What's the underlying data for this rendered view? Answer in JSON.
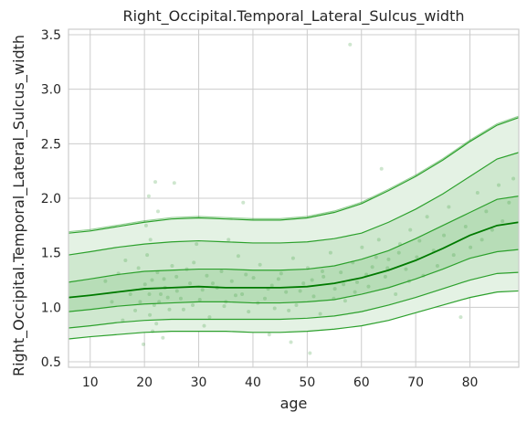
{
  "chart_data": {
    "type": "line",
    "title": "Right_Occipital.Temporal_Lateral_Sulcus_width",
    "xlabel": "age",
    "ylabel": "Right_Occipital.Temporal_Lateral_Sulcus_width",
    "xlim": [
      6,
      89
    ],
    "ylim": [
      0.45,
      3.55
    ],
    "xticks": [
      10,
      20,
      30,
      40,
      50,
      60,
      70,
      80
    ],
    "yticks": [
      0.5,
      1.0,
      1.5,
      2.0,
      2.5,
      3.0,
      3.5
    ],
    "ytick_labels": [
      "0.5",
      "1.0",
      "1.5",
      "2.0",
      "2.5",
      "3.0",
      "3.5"
    ],
    "grid": true,
    "colors": {
      "median": "#007a00",
      "centile": "#2ca02c",
      "band_outer": "#e4f2e4",
      "band_mid": "#cfe8cf",
      "band_inner": "#b7ddb7",
      "points": "#3a9a3a"
    },
    "x": [
      6,
      10,
      15,
      20,
      25,
      30,
      35,
      40,
      45,
      50,
      55,
      60,
      65,
      70,
      75,
      80,
      85,
      89
    ],
    "series": [
      {
        "values": [
          1.68,
          1.7,
          1.74,
          1.78,
          1.81,
          1.82,
          1.81,
          1.8,
          1.8,
          1.82,
          1.87,
          1.95,
          2.07,
          2.2,
          2.35,
          2.52,
          2.67,
          2.74
        ]
      },
      {
        "values": [
          1.48,
          1.51,
          1.55,
          1.58,
          1.6,
          1.61,
          1.6,
          1.59,
          1.59,
          1.6,
          1.63,
          1.68,
          1.78,
          1.9,
          2.04,
          2.2,
          2.36,
          2.42
        ]
      },
      {
        "values": [
          1.23,
          1.26,
          1.3,
          1.33,
          1.34,
          1.35,
          1.35,
          1.34,
          1.34,
          1.35,
          1.38,
          1.44,
          1.52,
          1.63,
          1.75,
          1.87,
          1.99,
          2.02
        ]
      },
      {
        "values": [
          1.09,
          1.11,
          1.14,
          1.17,
          1.18,
          1.19,
          1.18,
          1.18,
          1.18,
          1.19,
          1.22,
          1.27,
          1.34,
          1.43,
          1.54,
          1.66,
          1.75,
          1.78
        ]
      },
      {
        "values": [
          0.96,
          0.98,
          1.01,
          1.03,
          1.04,
          1.05,
          1.05,
          1.04,
          1.04,
          1.05,
          1.07,
          1.12,
          1.18,
          1.26,
          1.35,
          1.45,
          1.51,
          1.53
        ]
      },
      {
        "values": [
          0.81,
          0.83,
          0.86,
          0.88,
          0.89,
          0.89,
          0.89,
          0.89,
          0.89,
          0.9,
          0.92,
          0.96,
          1.02,
          1.09,
          1.17,
          1.25,
          1.31,
          1.32
        ]
      },
      {
        "values": [
          0.71,
          0.73,
          0.75,
          0.77,
          0.78,
          0.78,
          0.78,
          0.77,
          0.77,
          0.78,
          0.8,
          0.83,
          0.88,
          0.95,
          1.02,
          1.09,
          1.14,
          1.15
        ]
      }
    ],
    "points": [
      [
        19.2,
        1.05
      ],
      [
        20.1,
        1.21
      ],
      [
        21.0,
        0.93
      ],
      [
        22.4,
        1.32
      ],
      [
        23.0,
        1.12
      ],
      [
        20.5,
        1.48
      ],
      [
        21.8,
        1.02
      ],
      [
        22.2,
        0.85
      ],
      [
        23.6,
        1.26
      ],
      [
        24.3,
        1.09
      ],
      [
        25.1,
        1.38
      ],
      [
        26.0,
        1.15
      ],
      [
        27.2,
        0.98
      ],
      [
        28.4,
        1.22
      ],
      [
        29.1,
        1.41
      ],
      [
        30.2,
        1.07
      ],
      [
        31.5,
        1.29
      ],
      [
        32.0,
        0.91
      ],
      [
        33.4,
        1.18
      ],
      [
        34.2,
        1.33
      ],
      [
        35.0,
        1.05
      ],
      [
        36.1,
        1.24
      ],
      [
        37.3,
        1.47
      ],
      [
        38.0,
        1.12
      ],
      [
        39.2,
        0.96
      ],
      [
        40.1,
        1.27
      ],
      [
        41.3,
        1.39
      ],
      [
        42.2,
        1.08
      ],
      [
        43.5,
        1.2
      ],
      [
        44.0,
        0.99
      ],
      [
        45.2,
        1.31
      ],
      [
        46.1,
        1.14
      ],
      [
        47.4,
        1.45
      ],
      [
        48.0,
        1.02
      ],
      [
        49.3,
        1.22
      ],
      [
        50.1,
        1.36
      ],
      [
        51.2,
        1.1
      ],
      [
        52.4,
        0.94
      ],
      [
        53.0,
        1.28
      ],
      [
        54.3,
        1.5
      ],
      [
        55.1,
        1.17
      ],
      [
        56.2,
        1.32
      ],
      [
        57.0,
        1.06
      ],
      [
        58.4,
        1.41
      ],
      [
        59.2,
        1.23
      ],
      [
        60.1,
        1.55
      ],
      [
        61.3,
        1.19
      ],
      [
        62.0,
        1.37
      ],
      [
        63.2,
        1.62
      ],
      [
        64.4,
        1.28
      ],
      [
        65.0,
        1.44
      ],
      [
        66.3,
        1.12
      ],
      [
        67.1,
        1.58
      ],
      [
        68.2,
        1.35
      ],
      [
        69.0,
        1.71
      ],
      [
        70.2,
        1.46
      ],
      [
        71.4,
        1.29
      ],
      [
        72.1,
        1.83
      ],
      [
        73.3,
        1.52
      ],
      [
        74.0,
        1.38
      ],
      [
        75.2,
        1.66
      ],
      [
        76.1,
        1.92
      ],
      [
        77.0,
        1.48
      ],
      [
        78.3,
        0.91
      ],
      [
        79.2,
        1.74
      ],
      [
        80.1,
        1.55
      ],
      [
        81.4,
        2.05
      ],
      [
        82.2,
        1.62
      ],
      [
        83.0,
        1.88
      ],
      [
        84.1,
        1.71
      ],
      [
        85.3,
        2.12
      ],
      [
        86.0,
        1.79
      ],
      [
        87.2,
        1.96
      ],
      [
        88.0,
        2.18
      ],
      [
        20.3,
        1.75
      ],
      [
        21.1,
        1.62
      ],
      [
        22.5,
        1.88
      ],
      [
        23.4,
        0.72
      ],
      [
        21.5,
        0.78
      ],
      [
        19.8,
        0.66
      ],
      [
        22.0,
        2.15
      ],
      [
        20.8,
        2.02
      ],
      [
        25.5,
        2.14
      ],
      [
        57.9,
        3.41
      ],
      [
        38.2,
        1.96
      ],
      [
        29.6,
        1.58
      ],
      [
        31.0,
        0.83
      ],
      [
        43.0,
        0.75
      ],
      [
        47.0,
        0.68
      ],
      [
        50.5,
        0.58
      ],
      [
        35.5,
        1.62
      ],
      [
        63.7,
        2.27
      ],
      [
        16.5,
        1.43
      ],
      [
        15.2,
        1.31
      ],
      [
        12.8,
        1.24
      ],
      [
        14.0,
        1.05
      ],
      [
        17.4,
        1.12
      ],
      [
        18.3,
        0.97
      ],
      [
        18.9,
        1.36
      ],
      [
        16.0,
        0.88
      ],
      [
        20.9,
        1.12
      ],
      [
        21.4,
        1.25
      ],
      [
        22.7,
        1.05
      ],
      [
        23.8,
        1.18
      ],
      [
        24.6,
        0.98
      ],
      [
        25.9,
        1.28
      ],
      [
        26.7,
        1.08
      ],
      [
        27.8,
        1.35
      ],
      [
        28.9,
        1.02
      ],
      [
        30.7,
        1.16
      ],
      [
        32.6,
        1.22
      ],
      [
        34.7,
        1.01
      ],
      [
        36.8,
        1.11
      ],
      [
        38.7,
        1.3
      ],
      [
        40.9,
        1.04
      ],
      [
        42.8,
        1.17
      ],
      [
        44.7,
        1.26
      ],
      [
        46.6,
        0.97
      ],
      [
        48.7,
        1.15
      ],
      [
        50.9,
        1.25
      ],
      [
        52.8,
        1.33
      ],
      [
        54.9,
        1.08
      ],
      [
        56.7,
        1.21
      ],
      [
        58.8,
        1.14
      ],
      [
        60.9,
        1.3
      ],
      [
        62.7,
        1.46
      ],
      [
        64.8,
        1.36
      ],
      [
        66.9,
        1.5
      ],
      [
        68.8,
        1.24
      ],
      [
        70.7,
        1.61
      ]
    ]
  }
}
